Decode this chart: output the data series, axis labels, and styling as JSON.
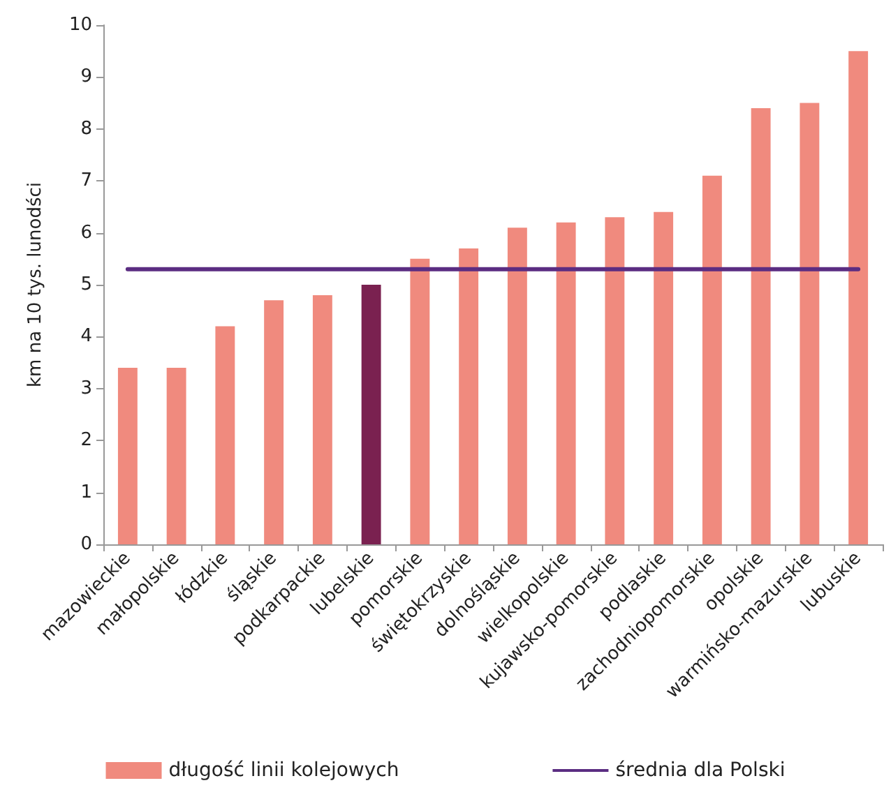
{
  "chart_data": {
    "type": "bar",
    "ylabel": "km na 10 tys. lunodści",
    "categories": [
      "mazowieckie",
      "małopolskie",
      "łódzkie",
      "śląskie",
      "podkarpackie",
      "lubelskie",
      "pomorskie",
      "świętokrzyskie",
      "dolnośląskie",
      "wielkopolskie",
      "kujawsko-pomorskie",
      "podlaskie",
      "zachodniopomorskie",
      "opolskie",
      "warmińsko-mazurskie",
      "lubuskie"
    ],
    "series": [
      {
        "name": "długość linii kolejowych",
        "color": "#f08a7e",
        "colors": [
          "#f08a7e",
          "#f08a7e",
          "#f08a7e",
          "#f08a7e",
          "#f08a7e",
          "#7a2150",
          "#f08a7e",
          "#f08a7e",
          "#f08a7e",
          "#f08a7e",
          "#f08a7e",
          "#f08a7e",
          "#f08a7e",
          "#f08a7e",
          "#f08a7e",
          "#f08a7e"
        ],
        "values": [
          3.4,
          3.4,
          4.2,
          4.7,
          4.8,
          5.0,
          5.5,
          5.7,
          6.1,
          6.2,
          6.3,
          6.4,
          7.1,
          8.4,
          8.5,
          9.5
        ]
      },
      {
        "name": "średnia dla Polski",
        "type": "line",
        "color": "#5b2d82",
        "marker": "none",
        "values": [
          5.3,
          5.3,
          5.3,
          5.3,
          5.3,
          5.3,
          5.3,
          5.3,
          5.3,
          5.3,
          5.3,
          5.3,
          5.3,
          5.3,
          5.3,
          5.3
        ]
      }
    ],
    "ylim": [
      0,
      10
    ],
    "yticks": [
      0,
      1,
      2,
      3,
      4,
      5,
      6,
      7,
      8,
      9,
      10
    ],
    "grid": false,
    "legend": "bottom"
  }
}
